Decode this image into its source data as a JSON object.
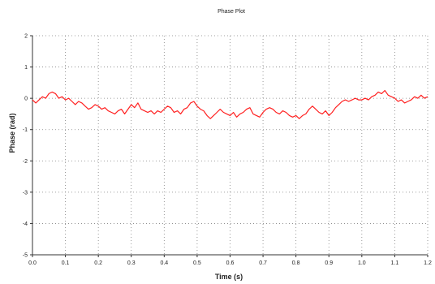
{
  "chart_data": {
    "type": "line",
    "title": "Phase Plot",
    "xlabel": "Time (s)",
    "ylabel": "Phase (rad)",
    "xlim": [
      0.0,
      1.2
    ],
    "ylim": [
      -5,
      2
    ],
    "x_ticks": [
      "0.0",
      "0.1",
      "0.2",
      "0.3",
      "0.4",
      "0.5",
      "0.6",
      "0.7",
      "0.8",
      "0.9",
      "1.0",
      "1.1",
      "1.2"
    ],
    "y_ticks": [
      "2",
      "1",
      "0",
      "-1",
      "-2",
      "-3",
      "-4",
      "-5"
    ],
    "grid": true,
    "line_color": "#ff2020",
    "series": [
      {
        "x": [
          0.0,
          0.01,
          0.02,
          0.03,
          0.04,
          0.05,
          0.06,
          0.07,
          0.08,
          0.09,
          0.1,
          0.11,
          0.12,
          0.13,
          0.14,
          0.15,
          0.16,
          0.17,
          0.18,
          0.19,
          0.2,
          0.21,
          0.22,
          0.23,
          0.24,
          0.25,
          0.26,
          0.27,
          0.28,
          0.29,
          0.3,
          0.31,
          0.32,
          0.33,
          0.34,
          0.35,
          0.36,
          0.37,
          0.38,
          0.39,
          0.4,
          0.41,
          0.42,
          0.43,
          0.44,
          0.45,
          0.46,
          0.47,
          0.48,
          0.49,
          0.5,
          0.51,
          0.52,
          0.53,
          0.54,
          0.55,
          0.56,
          0.57,
          0.58,
          0.59,
          0.6,
          0.61,
          0.62,
          0.63,
          0.64,
          0.65,
          0.66,
          0.67,
          0.68,
          0.69,
          0.7,
          0.71,
          0.72,
          0.73,
          0.74,
          0.75,
          0.76,
          0.77,
          0.78,
          0.79,
          0.8,
          0.81,
          0.82,
          0.83,
          0.84,
          0.85,
          0.86,
          0.87,
          0.88,
          0.89,
          0.9,
          0.91,
          0.92,
          0.93,
          0.94,
          0.95,
          0.96,
          0.97,
          0.98,
          0.99,
          1.0,
          1.01,
          1.02,
          1.03,
          1.04,
          1.05,
          1.06,
          1.07,
          1.08,
          1.09,
          1.1,
          1.11,
          1.12,
          1.13,
          1.14,
          1.15,
          1.16,
          1.17,
          1.18,
          1.19,
          1.2
        ],
        "y": [
          -0.05,
          -0.15,
          -0.05,
          0.05,
          0.0,
          0.15,
          0.2,
          0.15,
          0.0,
          0.05,
          -0.05,
          0.0,
          -0.1,
          -0.2,
          -0.1,
          -0.15,
          -0.25,
          -0.35,
          -0.3,
          -0.2,
          -0.25,
          -0.35,
          -0.3,
          -0.4,
          -0.45,
          -0.5,
          -0.4,
          -0.35,
          -0.5,
          -0.35,
          -0.2,
          -0.3,
          -0.15,
          -0.35,
          -0.4,
          -0.45,
          -0.4,
          -0.5,
          -0.4,
          -0.45,
          -0.35,
          -0.25,
          -0.3,
          -0.45,
          -0.4,
          -0.5,
          -0.35,
          -0.3,
          -0.15,
          -0.1,
          -0.25,
          -0.35,
          -0.4,
          -0.55,
          -0.65,
          -0.55,
          -0.45,
          -0.35,
          -0.45,
          -0.5,
          -0.55,
          -0.45,
          -0.6,
          -0.5,
          -0.45,
          -0.35,
          -0.3,
          -0.5,
          -0.55,
          -0.6,
          -0.45,
          -0.35,
          -0.3,
          -0.35,
          -0.45,
          -0.5,
          -0.4,
          -0.45,
          -0.55,
          -0.6,
          -0.55,
          -0.65,
          -0.55,
          -0.5,
          -0.35,
          -0.25,
          -0.35,
          -0.45,
          -0.5,
          -0.4,
          -0.55,
          -0.45,
          -0.3,
          -0.2,
          -0.1,
          -0.05,
          -0.1,
          -0.05,
          0.0,
          -0.05,
          -0.05,
          0.0,
          -0.05,
          0.05,
          0.1,
          0.2,
          0.15,
          0.25,
          0.1,
          0.05,
          0.0,
          -0.1,
          -0.05,
          -0.15,
          -0.1,
          -0.05,
          0.05,
          0.0,
          0.1,
          0.0,
          0.05
        ]
      }
    ]
  }
}
